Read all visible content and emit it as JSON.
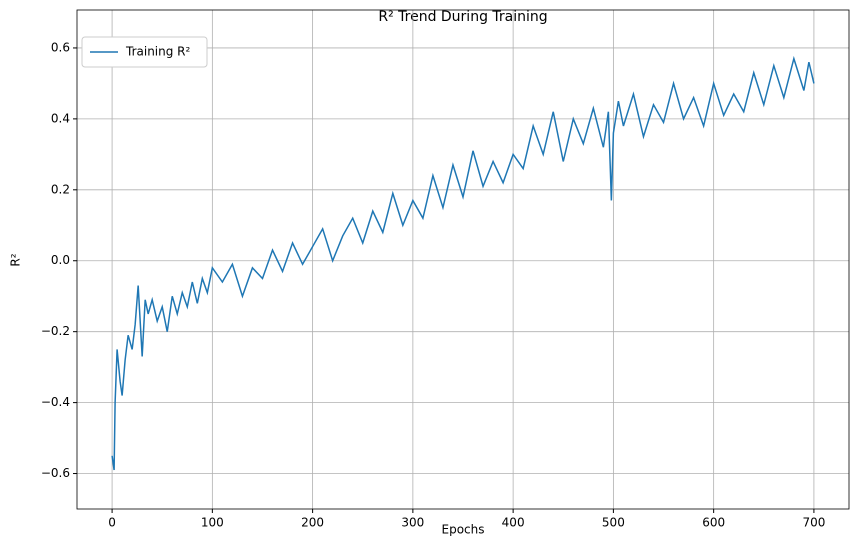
{
  "chart_data": {
    "type": "line",
    "title": "R² Trend During Training",
    "x_label": "Epochs",
    "y_label": "R²",
    "x": [
      0,
      2,
      3,
      5,
      8,
      10,
      13,
      16,
      20,
      23,
      26,
      30,
      33,
      36,
      40,
      45,
      50,
      55,
      60,
      65,
      70,
      75,
      80,
      85,
      90,
      95,
      100,
      110,
      120,
      130,
      140,
      150,
      160,
      170,
      180,
      190,
      200,
      210,
      220,
      230,
      240,
      250,
      260,
      270,
      280,
      290,
      300,
      310,
      320,
      330,
      340,
      350,
      360,
      370,
      380,
      390,
      400,
      410,
      420,
      430,
      440,
      450,
      460,
      470,
      480,
      490,
      495,
      498,
      500,
      505,
      510,
      520,
      530,
      540,
      550,
      560,
      570,
      580,
      590,
      600,
      610,
      620,
      630,
      640,
      650,
      660,
      670,
      680,
      690,
      695,
      700
    ],
    "series": [
      {
        "name": "Training R²",
        "color": "#1f77b4",
        "values": [
          -0.55,
          -0.59,
          -0.4,
          -0.25,
          -0.34,
          -0.38,
          -0.28,
          -0.21,
          -0.25,
          -0.18,
          -0.07,
          -0.27,
          -0.11,
          -0.15,
          -0.11,
          -0.17,
          -0.13,
          -0.2,
          -0.1,
          -0.15,
          -0.09,
          -0.13,
          -0.06,
          -0.12,
          -0.05,
          -0.09,
          -0.02,
          -0.06,
          -0.01,
          -0.1,
          -0.02,
          -0.05,
          0.03,
          -0.03,
          0.05,
          -0.01,
          0.04,
          0.09,
          0.0,
          0.07,
          0.12,
          0.05,
          0.14,
          0.08,
          0.19,
          0.1,
          0.17,
          0.12,
          0.24,
          0.15,
          0.27,
          0.18,
          0.31,
          0.21,
          0.28,
          0.22,
          0.3,
          0.26,
          0.38,
          0.3,
          0.42,
          0.28,
          0.4,
          0.33,
          0.43,
          0.32,
          0.42,
          0.17,
          0.36,
          0.45,
          0.38,
          0.47,
          0.35,
          0.44,
          0.39,
          0.5,
          0.4,
          0.46,
          0.38,
          0.5,
          0.41,
          0.47,
          0.42,
          0.53,
          0.44,
          0.55,
          0.46,
          0.57,
          0.48,
          0.56,
          0.5
        ]
      }
    ],
    "xlim": [
      -35,
      735
    ],
    "ylim": [
      -0.7,
      0.707
    ],
    "xticks": [
      0,
      100,
      200,
      300,
      400,
      500,
      600,
      700
    ],
    "yticks": [
      {
        "value": -0.6,
        "label": "−0.6"
      },
      {
        "value": -0.4,
        "label": "−0.4"
      },
      {
        "value": -0.2,
        "label": "−0.2"
      },
      {
        "value": 0,
        "label": "0.0"
      },
      {
        "value": 0.2,
        "label": "0.2"
      },
      {
        "value": 0.4,
        "label": "0.4"
      },
      {
        "value": 0.6,
        "label": "0.6"
      }
    ],
    "grid": true,
    "legend": "upper left"
  }
}
